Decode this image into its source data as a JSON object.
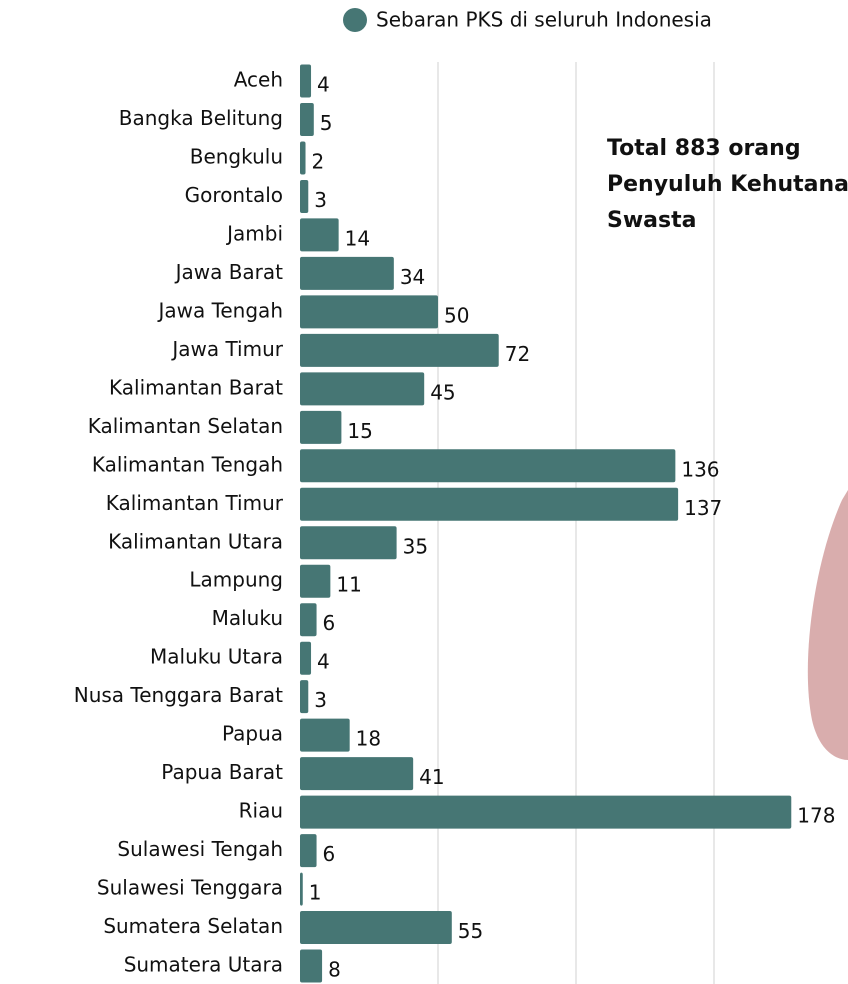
{
  "chart_data": {
    "type": "barh",
    "legend": "Sebaran PKS di seluruh Indonesia",
    "annotation": [
      "Total 883 orang",
      "Penyuluh Kehutanan",
      "Swasta"
    ],
    "categories": [
      "Aceh",
      "Bangka Belitung",
      "Bengkulu",
      "Gorontalo",
      "Jambi",
      "Jawa Barat",
      "Jawa Tengah",
      "Jawa Timur",
      "Kalimantan Barat",
      "Kalimantan Selatan",
      "Kalimantan Tengah",
      "Kalimantan Timur",
      "Kalimantan Utara",
      "Lampung",
      "Maluku",
      "Maluku Utara",
      "Nusa Tenggara Barat",
      "Papua",
      "Papua Barat",
      "Riau",
      "Sulawesi Tengah",
      "Sulawesi Tenggara",
      "Sumatera Selatan",
      "Sumatera Utara"
    ],
    "values": [
      4,
      5,
      2,
      3,
      14,
      34,
      50,
      72,
      45,
      15,
      136,
      137,
      35,
      11,
      6,
      4,
      3,
      18,
      41,
      178,
      6,
      1,
      55,
      8
    ],
    "color": "#467674",
    "xlim": [
      0,
      200
    ],
    "xticks": [
      50,
      100,
      150
    ],
    "grid": true
  }
}
